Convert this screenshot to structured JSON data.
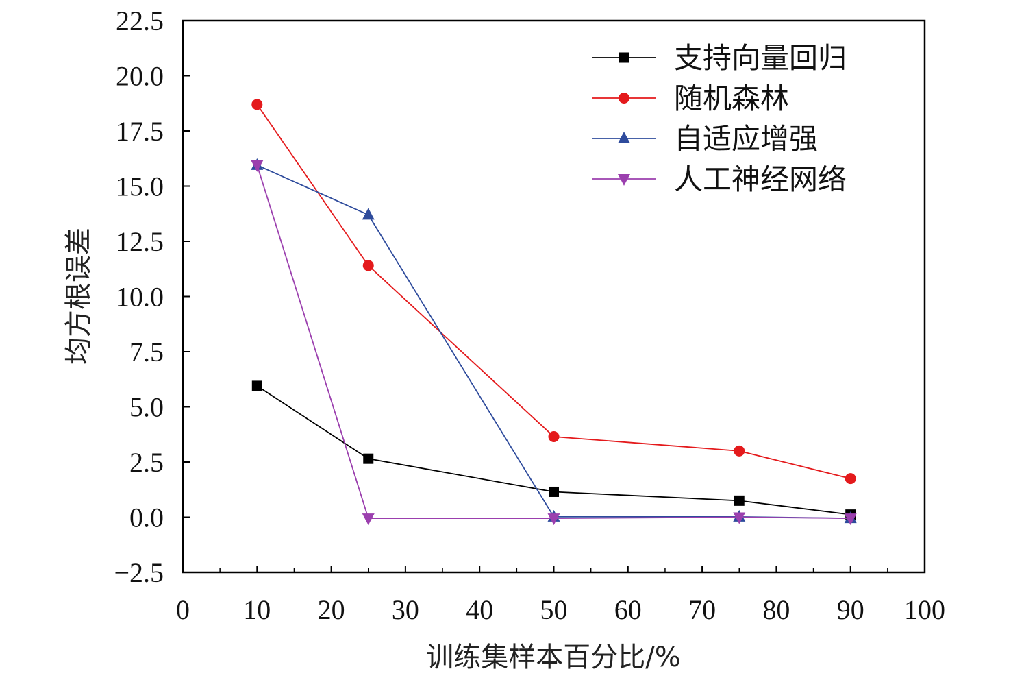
{
  "chart_data": {
    "type": "line",
    "title": "",
    "xlabel": "训练集样本百分比/%",
    "ylabel": "均方根误差",
    "xlim": [
      0,
      100
    ],
    "ylim": [
      -2.5,
      22.5
    ],
    "xticks": [
      0,
      10,
      20,
      30,
      40,
      50,
      60,
      70,
      80,
      90,
      100
    ],
    "xtick_labels": [
      "0",
      "10",
      "20",
      "30",
      "40",
      "50",
      "60",
      "70",
      "80",
      "90",
      "100"
    ],
    "yticks": [
      -2.5,
      0.0,
      2.5,
      5.0,
      7.5,
      10.0,
      12.5,
      15.0,
      17.5,
      20.0,
      22.5
    ],
    "ytick_labels": [
      "−2.5",
      "0.0",
      "2.5",
      "5.0",
      "7.5",
      "10.0",
      "12.5",
      "15.0",
      "17.5",
      "20.0",
      "22.5"
    ],
    "grid": false,
    "legend_position": "top-right",
    "x": [
      10,
      25,
      50,
      75,
      90
    ],
    "series": [
      {
        "name": "支持向量回归",
        "marker": "square",
        "color": "#000000",
        "values": [
          5.95,
          2.65,
          1.15,
          0.75,
          0.12
        ]
      },
      {
        "name": "随机森林",
        "marker": "circle",
        "color": "#e41a1c",
        "values": [
          18.7,
          11.4,
          3.65,
          3.0,
          1.75
        ]
      },
      {
        "name": "自适应增强",
        "marker": "triangle-up",
        "color": "#2e4b9c",
        "values": [
          15.95,
          13.7,
          0.02,
          0.02,
          -0.05
        ]
      },
      {
        "name": "人工神经网络",
        "marker": "triangle-down",
        "color": "#9b3fae",
        "values": [
          15.95,
          -0.05,
          -0.05,
          0.0,
          -0.05
        ]
      }
    ]
  }
}
